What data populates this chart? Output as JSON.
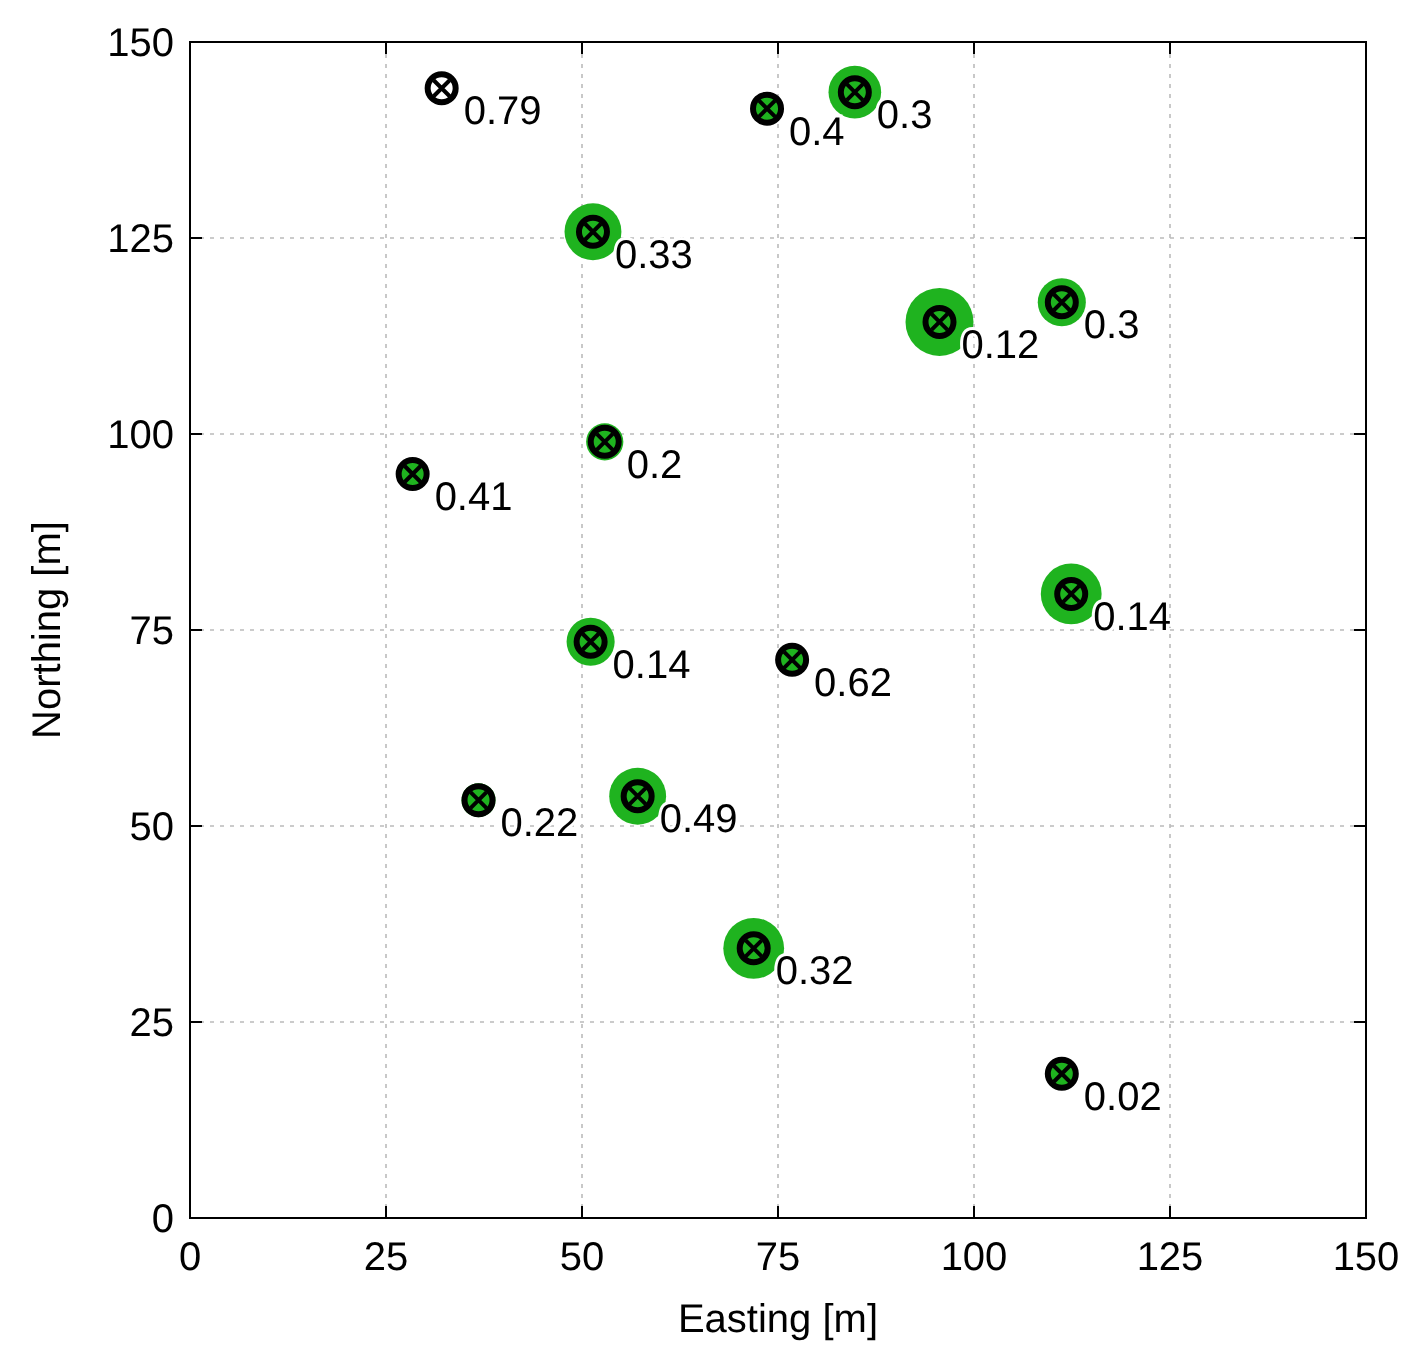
{
  "chart_data": {
    "type": "scatter",
    "xlabel": "Easting [m]",
    "ylabel": "Northing [m]",
    "xlim": [
      0,
      150
    ],
    "ylim": [
      0,
      150
    ],
    "xticks": [
      0,
      25,
      50,
      75,
      100,
      125,
      150
    ],
    "yticks": [
      0,
      25,
      50,
      75,
      100,
      125,
      150
    ],
    "grid": true,
    "series": [
      {
        "type": "bubble",
        "color": "#1fb31f",
        "x": [
          73.6,
          84.8,
          51.4,
          95.6,
          111.2,
          52.9,
          28.4,
          112.4,
          51.1,
          76.8,
          36.8,
          57.1,
          71.9,
          111.2
        ],
        "values": [
          141.5,
          143.6,
          125.8,
          114.3,
          116.8,
          99.0,
          94.9,
          79.6,
          73.5,
          71.2,
          53.3,
          53.8,
          34.4,
          18.4
        ],
        "sizes": [
          0.2,
          0.6,
          0.7,
          1.0,
          0.5,
          0.3,
          0.2,
          0.8,
          0.5,
          0.2,
          0.25,
          0.7,
          0.8,
          0.2
        ]
      },
      {
        "type": "scatter",
        "color": "#000000",
        "marker": "circle",
        "x": [
          32.1,
          73.6,
          84.8,
          51.4,
          95.6,
          111.2,
          52.9,
          28.4,
          112.4,
          51.1,
          76.8,
          36.8,
          57.1,
          71.9,
          111.2
        ],
        "values": [
          144.1,
          141.5,
          143.6,
          125.8,
          114.3,
          116.8,
          99.0,
          94.9,
          79.6,
          73.5,
          71.2,
          53.3,
          53.8,
          34.4,
          18.4
        ]
      }
    ],
    "annotations": [
      {
        "text": "0.79",
        "x": 32.1,
        "y": 144.1
      },
      {
        "text": "0.4",
        "x": 73.6,
        "y": 141.5
      },
      {
        "text": "0.3",
        "x": 84.8,
        "y": 143.6
      },
      {
        "text": "0.33",
        "x": 51.4,
        "y": 125.8
      },
      {
        "text": "0.12",
        "x": 95.6,
        "y": 114.3
      },
      {
        "text": "0.3",
        "x": 111.2,
        "y": 116.8
      },
      {
        "text": "0.2",
        "x": 52.9,
        "y": 99.0
      },
      {
        "text": "0.41",
        "x": 28.4,
        "y": 94.9
      },
      {
        "text": "0.14",
        "x": 112.4,
        "y": 79.6
      },
      {
        "text": "0.14",
        "x": 51.1,
        "y": 73.5
      },
      {
        "text": "0.62",
        "x": 76.8,
        "y": 71.2
      },
      {
        "text": "0.22",
        "x": 36.8,
        "y": 53.3
      },
      {
        "text": "0.49",
        "x": 57.1,
        "y": 53.8
      },
      {
        "text": "0.32",
        "x": 71.9,
        "y": 34.4
      },
      {
        "text": "0.02",
        "x": 111.2,
        "y": 18.4
      }
    ]
  }
}
